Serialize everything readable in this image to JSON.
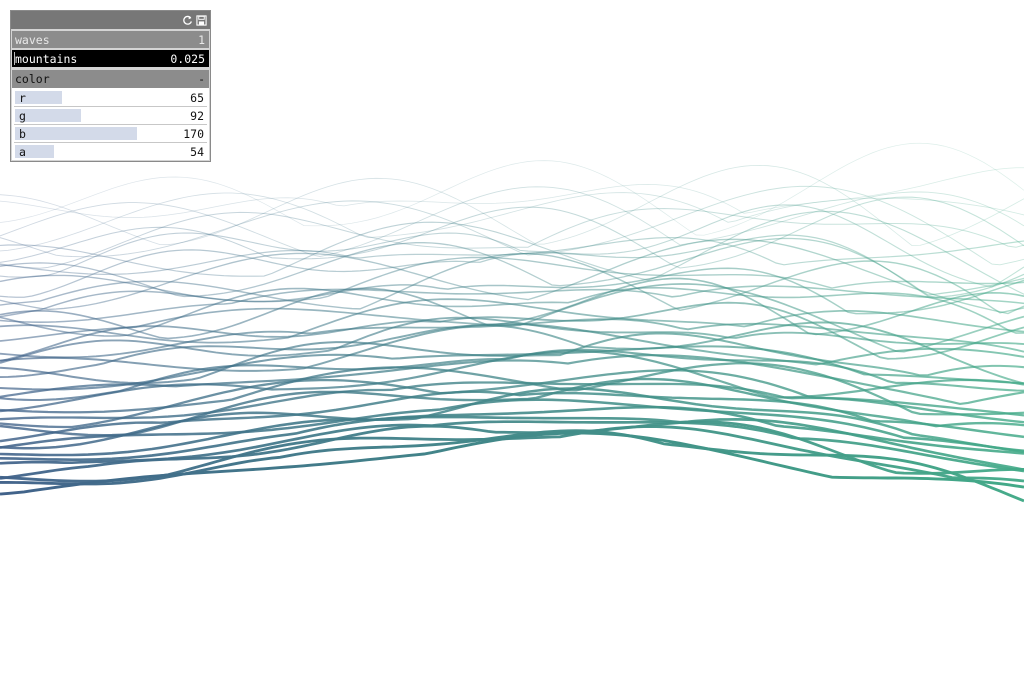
{
  "panel": {
    "rows": [
      {
        "label": "waves",
        "value": "1"
      },
      {
        "label": "mountains",
        "value": "0.025"
      }
    ],
    "group": {
      "title": "color",
      "toggle": "-",
      "sliders": [
        {
          "label": "r",
          "value": "65",
          "level": 0.255
        },
        {
          "label": "g",
          "value": "92",
          "level": 0.361
        },
        {
          "label": "b",
          "value": "170",
          "level": 0.667
        },
        {
          "label": "a",
          "value": "54",
          "level": 0.212
        }
      ]
    }
  },
  "colors": {
    "blue": "#41628a",
    "green": "#43aa88"
  },
  "icons": {
    "refresh": "refresh-icon",
    "save": "save-icon"
  }
}
